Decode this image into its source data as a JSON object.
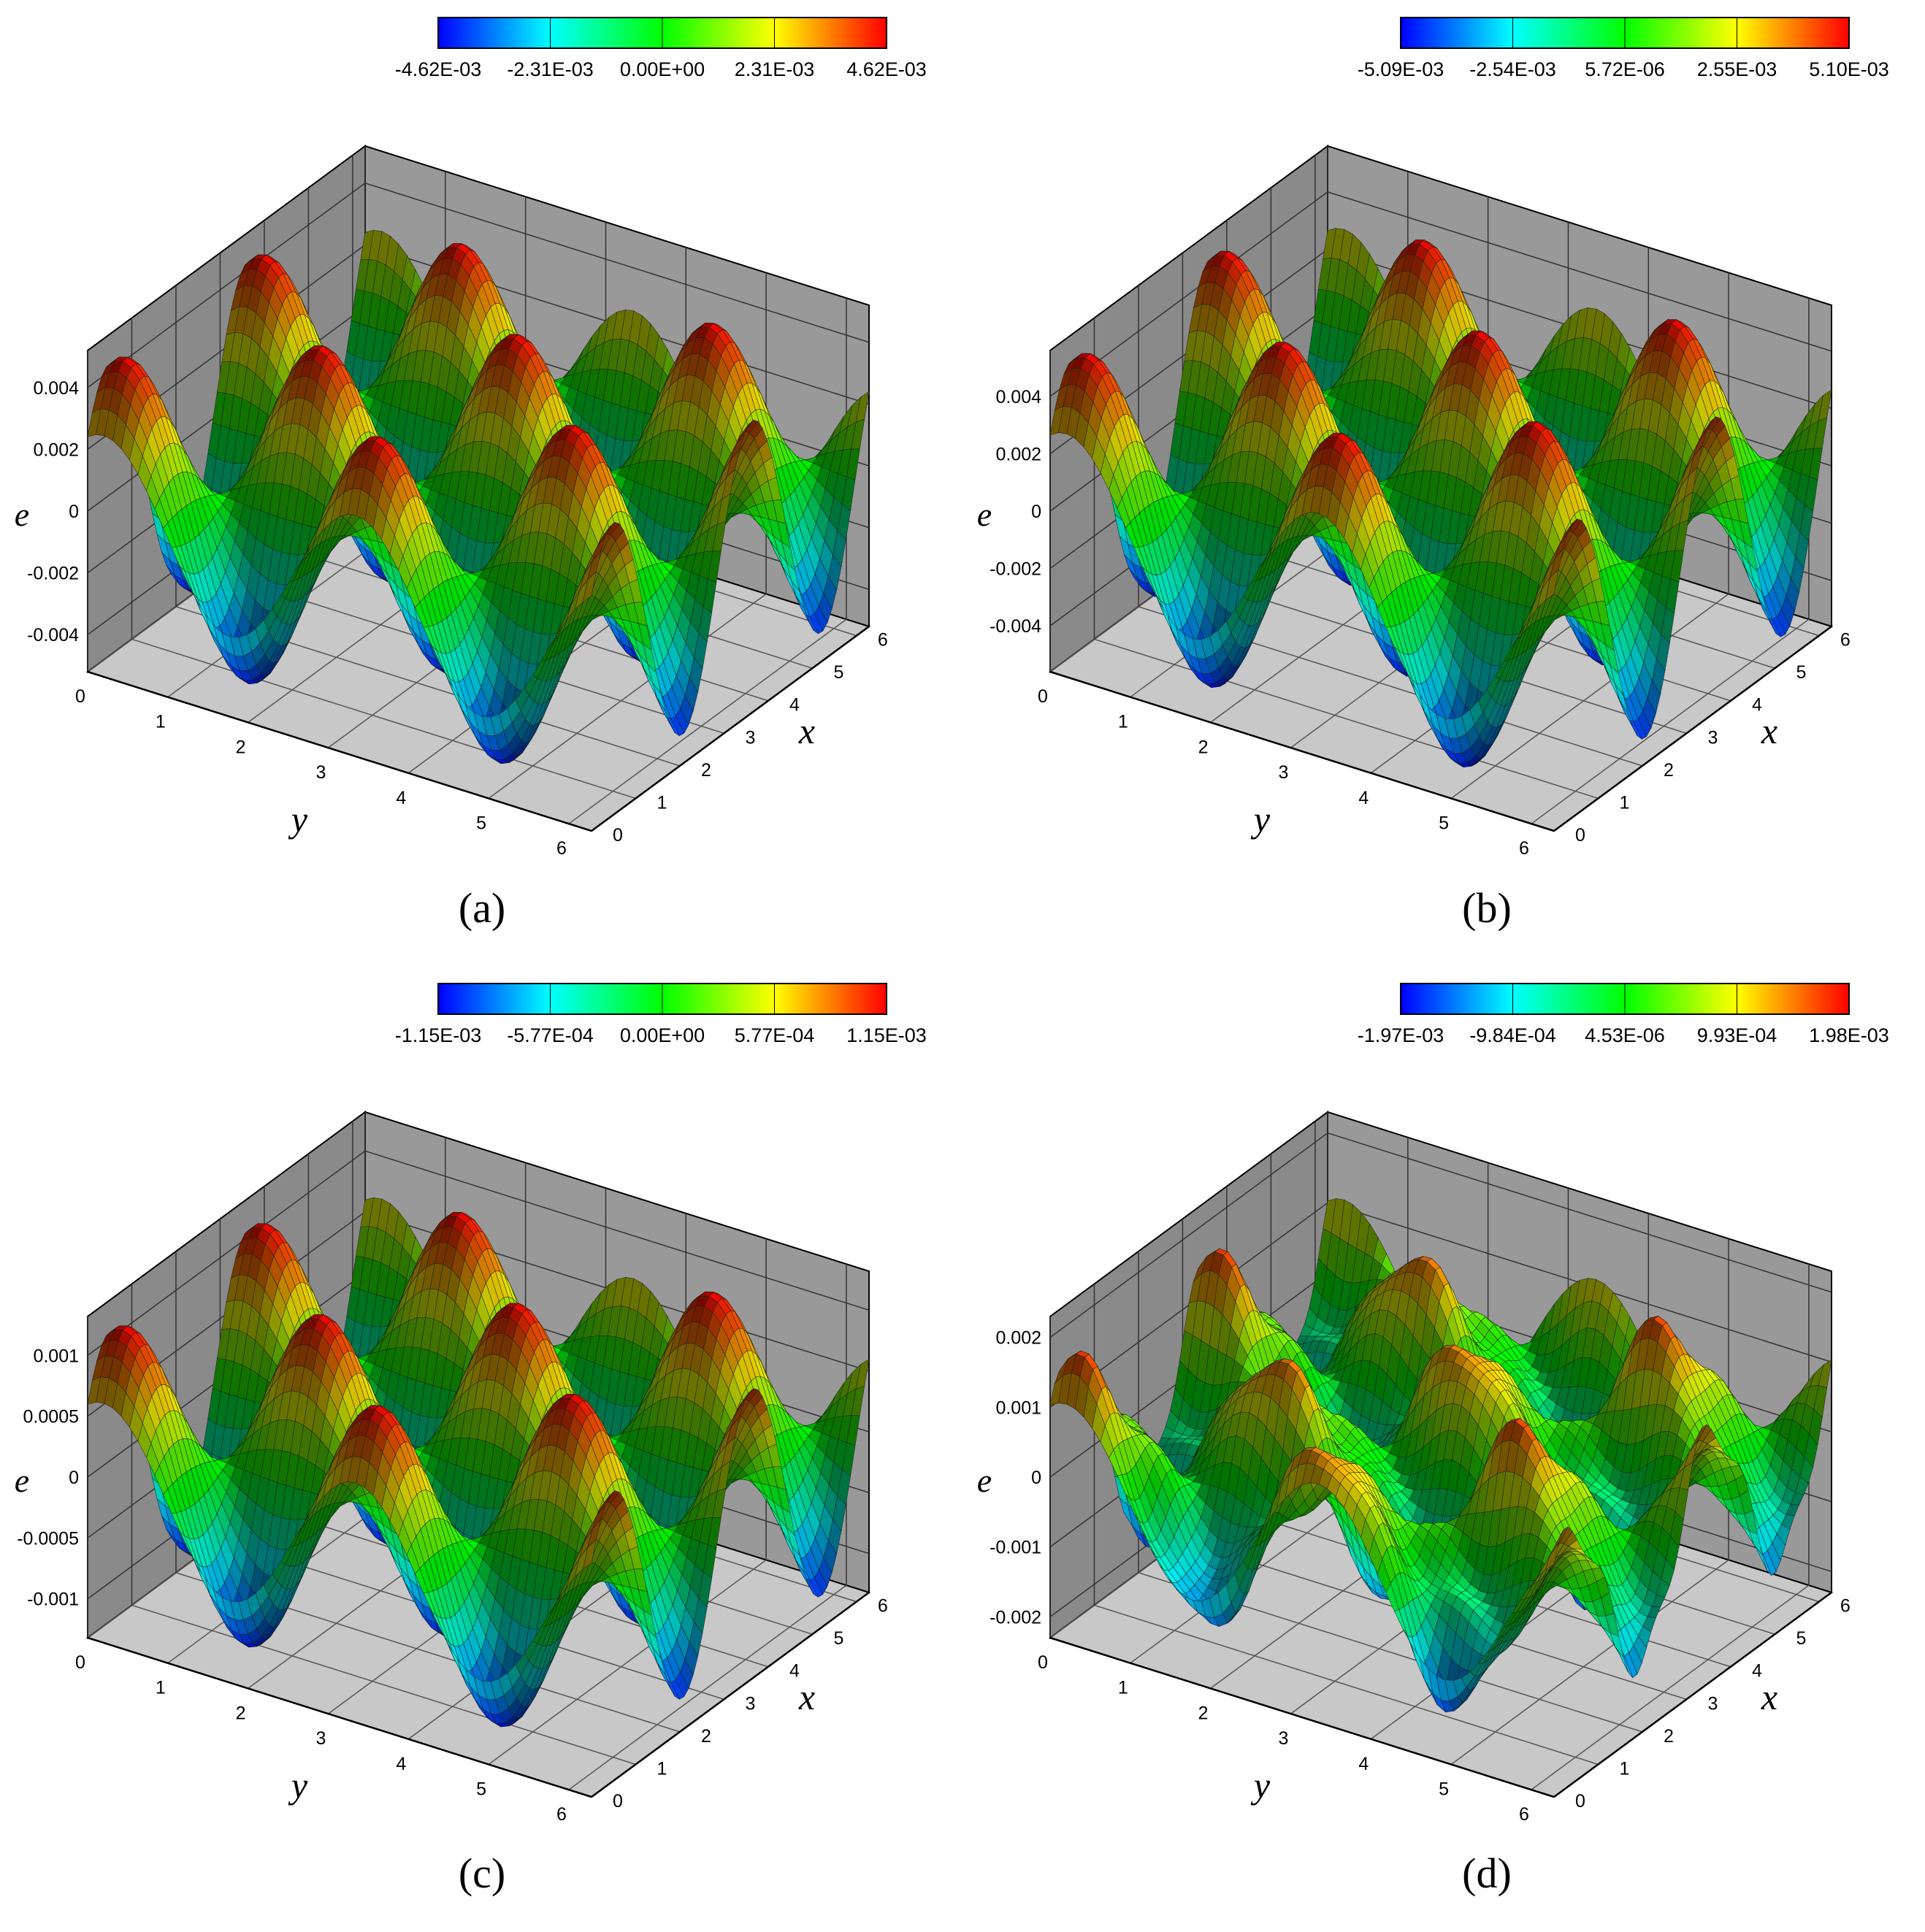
{
  "colors": {
    "colormap": [
      "#0000ff",
      "#00ffff",
      "#00ff00",
      "#ffff00",
      "#ff0000"
    ],
    "back_wall": "#999999",
    "side_wall": "#8a8a8a",
    "floor": "#c8c8c8",
    "mesh": "#000000"
  },
  "chart_data": [
    {
      "type": "surface3d",
      "caption": "(a)",
      "zlabel": "e",
      "xlabel": "x",
      "ylabel": "y",
      "x_ticks": [
        "0",
        "1",
        "2",
        "3",
        "4",
        "5",
        "6"
      ],
      "y_ticks": [
        "0",
        "1",
        "2",
        "3",
        "4",
        "5",
        "6"
      ],
      "z_ticks": [
        "-0.004",
        "-0.002",
        "0",
        "0.002",
        "0.004"
      ],
      "z_tick_values": [
        -0.004,
        -0.002,
        0,
        0.002,
        0.004
      ],
      "zlim": [
        -0.0052,
        0.0052
      ],
      "amplitude": 0.00462,
      "colorbar": {
        "labels": [
          "-4.62E-03",
          "-2.31E-03",
          "0.00E+00",
          "2.31E-03",
          "4.62E-03"
        ],
        "range": [
          -0.00462,
          0.00462
        ]
      },
      "grid": true
    },
    {
      "type": "surface3d",
      "caption": "(b)",
      "zlabel": "e",
      "xlabel": "x",
      "ylabel": "y",
      "x_ticks": [
        "0",
        "1",
        "2",
        "3",
        "4",
        "5",
        "6"
      ],
      "y_ticks": [
        "0",
        "1",
        "2",
        "3",
        "4",
        "5",
        "6"
      ],
      "z_ticks": [
        "-0.004",
        "-0.002",
        "0",
        "0.002",
        "0.004"
      ],
      "z_tick_values": [
        -0.004,
        -0.002,
        0,
        0.002,
        0.004
      ],
      "zlim": [
        -0.0056,
        0.0056
      ],
      "amplitude": 0.0051,
      "colorbar": {
        "labels": [
          "-5.09E-03",
          "-2.54E-03",
          "5.72E-06",
          "2.55E-03",
          "5.10E-03"
        ],
        "range": [
          -0.00509,
          0.0051
        ]
      },
      "grid": true
    },
    {
      "type": "surface3d",
      "caption": "(c)",
      "zlabel": "e",
      "xlabel": "x",
      "ylabel": "y",
      "x_ticks": [
        "0",
        "1",
        "2",
        "3",
        "4",
        "5",
        "6"
      ],
      "y_ticks": [
        "0",
        "1",
        "2",
        "3",
        "4",
        "5",
        "6"
      ],
      "z_ticks": [
        "-0.001",
        "-0.0005",
        "0",
        "0.0005",
        "0.001"
      ],
      "z_tick_values": [
        -0.001,
        -0.0005,
        0,
        0.0005,
        0.001
      ],
      "zlim": [
        -0.00132,
        0.00132
      ],
      "amplitude": 0.00115,
      "colorbar": {
        "labels": [
          "-1.15E-03",
          "-5.77E-04",
          "0.00E+00",
          "5.77E-04",
          "1.15E-03"
        ],
        "range": [
          -0.00115,
          0.00115
        ]
      },
      "grid": true
    },
    {
      "type": "surface3d",
      "caption": "(d)",
      "zlabel": "e",
      "xlabel": "x",
      "ylabel": "y",
      "x_ticks": [
        "0",
        "1",
        "2",
        "3",
        "4",
        "5",
        "6"
      ],
      "y_ticks": [
        "0",
        "1",
        "2",
        "3",
        "4",
        "5",
        "6"
      ],
      "z_ticks": [
        "-0.002",
        "-0.001",
        "0",
        "0.001",
        "0.002"
      ],
      "z_tick_values": [
        -0.002,
        -0.001,
        0,
        0.001,
        0.002
      ],
      "zlim": [
        -0.0023,
        0.0023
      ],
      "amplitude": 0.00198,
      "colorbar": {
        "labels": [
          "-1.97E-03",
          "-9.84E-04",
          "4.53E-06",
          "9.93E-04",
          "1.98E-03"
        ],
        "range": [
          -0.00197,
          0.00198
        ]
      },
      "grid": true
    }
  ]
}
